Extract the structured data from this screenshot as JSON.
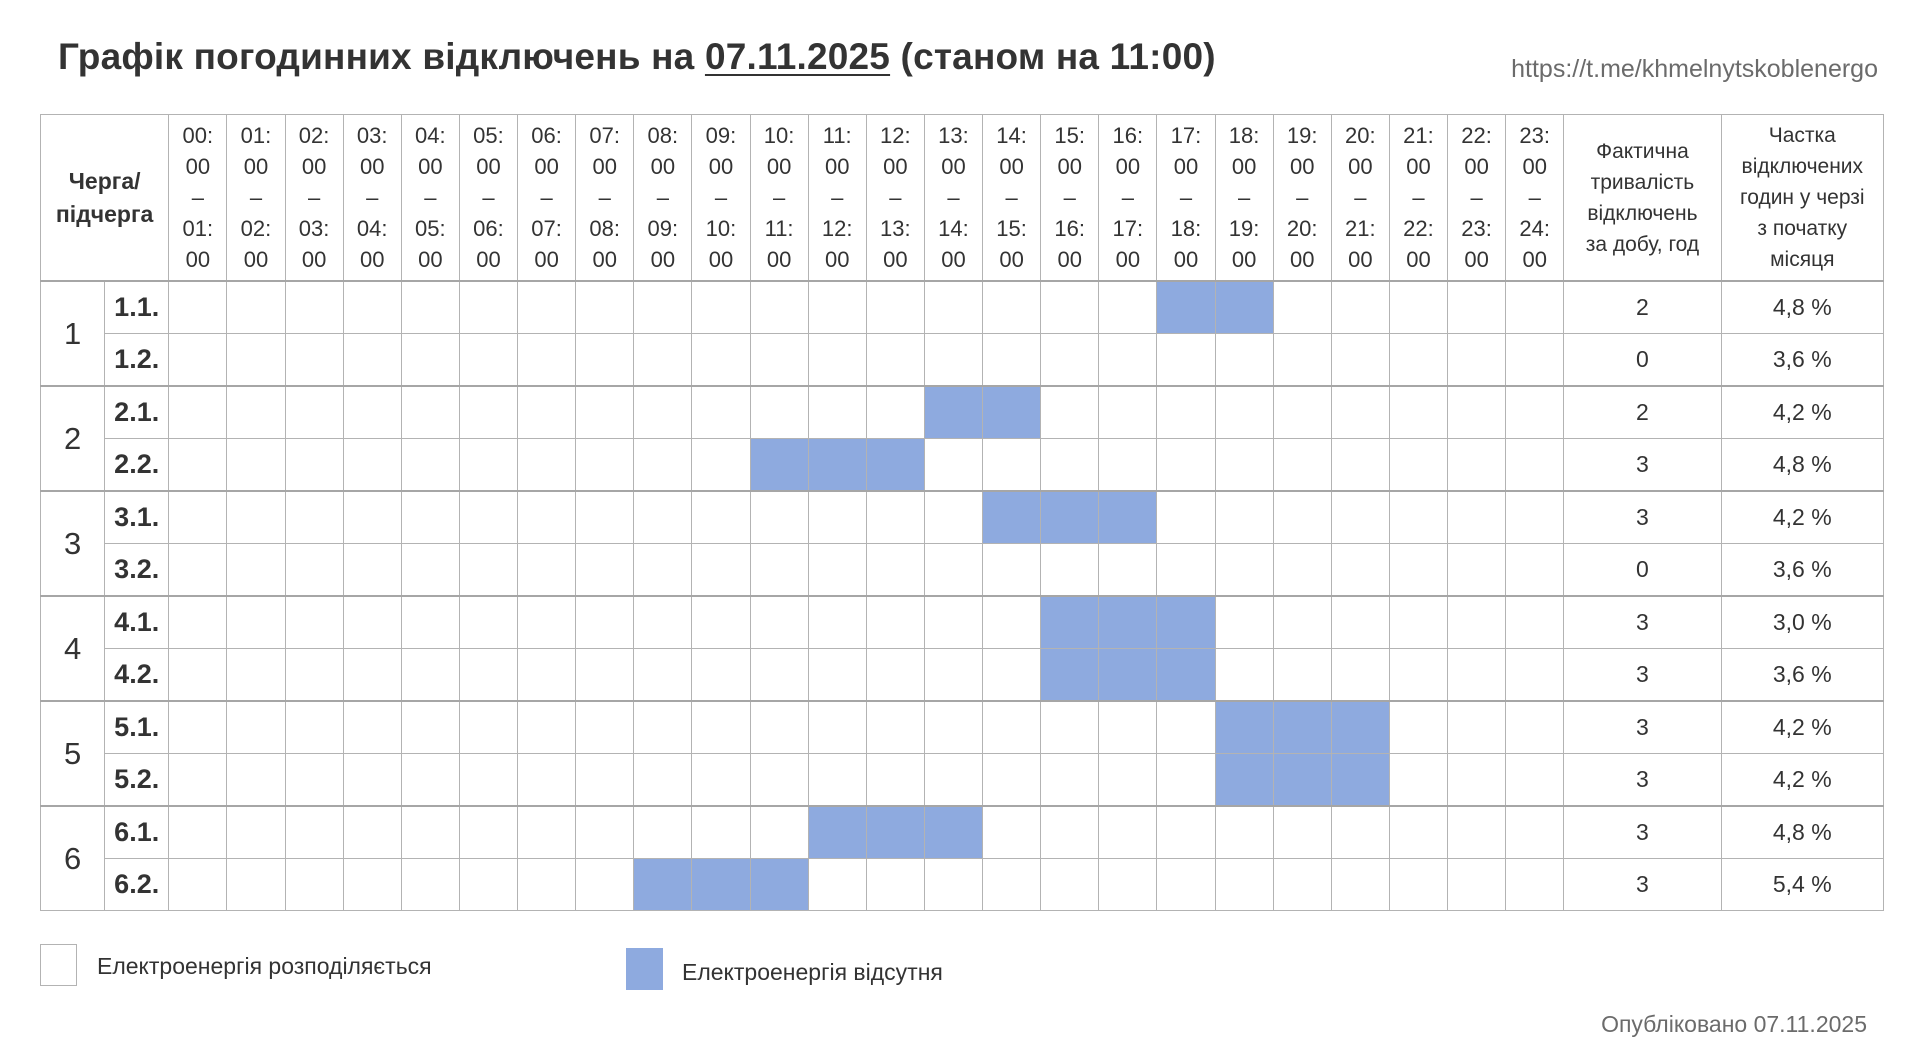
{
  "header": {
    "title_prefix": "Графік погодинних відключень на ",
    "title_date": "07.11.2025",
    "title_suffix": " (станом на 11:00)",
    "link": "https://t.me/khmelnytskoblenergo"
  },
  "table": {
    "queue_header": [
      "Черга/",
      "підчерга"
    ],
    "hours": [
      [
        "00:",
        "00",
        "–",
        "01:",
        "00"
      ],
      [
        "01:",
        "00",
        "–",
        "02:",
        "00"
      ],
      [
        "02:",
        "00",
        "–",
        "03:",
        "00"
      ],
      [
        "03:",
        "00",
        "–",
        "04:",
        "00"
      ],
      [
        "04:",
        "00",
        "–",
        "05:",
        "00"
      ],
      [
        "05:",
        "00",
        "–",
        "06:",
        "00"
      ],
      [
        "06:",
        "00",
        "–",
        "07:",
        "00"
      ],
      [
        "07:",
        "00",
        "–",
        "08:",
        "00"
      ],
      [
        "08:",
        "00",
        "–",
        "09:",
        "00"
      ],
      [
        "09:",
        "00",
        "–",
        "10:",
        "00"
      ],
      [
        "10:",
        "00",
        "–",
        "11:",
        "00"
      ],
      [
        "11:",
        "00",
        "–",
        "12:",
        "00"
      ],
      [
        "12:",
        "00",
        "–",
        "13:",
        "00"
      ],
      [
        "13:",
        "00",
        "–",
        "14:",
        "00"
      ],
      [
        "14:",
        "00",
        "–",
        "15:",
        "00"
      ],
      [
        "15:",
        "00",
        "–",
        "16:",
        "00"
      ],
      [
        "16:",
        "00",
        "–",
        "17:",
        "00"
      ],
      [
        "17:",
        "00",
        "–",
        "18:",
        "00"
      ],
      [
        "18:",
        "00",
        "–",
        "19:",
        "00"
      ],
      [
        "19:",
        "00",
        "–",
        "20:",
        "00"
      ],
      [
        "20:",
        "00",
        "–",
        "21:",
        "00"
      ],
      [
        "21:",
        "00",
        "–",
        "22:",
        "00"
      ],
      [
        "22:",
        "00",
        "–",
        "23:",
        "00"
      ],
      [
        "23:",
        "00",
        "–",
        "24:",
        "00"
      ]
    ],
    "duration_header": [
      "Фактична",
      "тривалість",
      "відключень",
      "за добу, год"
    ],
    "share_header": [
      "Частка",
      "відключених",
      "годин у черзі",
      "з початку",
      "місяця"
    ],
    "groups": [
      {
        "label": "1",
        "subs": [
          {
            "label": "1.1.",
            "off_hours": [
              17,
              18
            ],
            "duration": "2",
            "share": "4,8 %"
          },
          {
            "label": "1.2.",
            "off_hours": [],
            "duration": "0",
            "share": "3,6 %"
          }
        ]
      },
      {
        "label": "2",
        "subs": [
          {
            "label": "2.1.",
            "off_hours": [
              13,
              14
            ],
            "duration": "2",
            "share": "4,2 %"
          },
          {
            "label": "2.2.",
            "off_hours": [
              10,
              11,
              12
            ],
            "duration": "3",
            "share": "4,8 %"
          }
        ]
      },
      {
        "label": "3",
        "subs": [
          {
            "label": "3.1.",
            "off_hours": [
              14,
              15,
              16
            ],
            "duration": "3",
            "share": "4,2 %"
          },
          {
            "label": "3.2.",
            "off_hours": [],
            "duration": "0",
            "share": "3,6 %"
          }
        ]
      },
      {
        "label": "4",
        "subs": [
          {
            "label": "4.1.",
            "off_hours": [
              15,
              16,
              17
            ],
            "duration": "3",
            "share": "3,0 %"
          },
          {
            "label": "4.2.",
            "off_hours": [
              15,
              16,
              17
            ],
            "duration": "3",
            "share": "3,6 %"
          }
        ]
      },
      {
        "label": "5",
        "subs": [
          {
            "label": "5.1.",
            "off_hours": [
              18,
              19,
              20
            ],
            "duration": "3",
            "share": "4,2 %"
          },
          {
            "label": "5.2.",
            "off_hours": [
              18,
              19,
              20
            ],
            "duration": "3",
            "share": "4,2 %"
          }
        ]
      },
      {
        "label": "6",
        "subs": [
          {
            "label": "6.1.",
            "off_hours": [
              11,
              12,
              13
            ],
            "duration": "3",
            "share": "4,8 %"
          },
          {
            "label": "6.2.",
            "off_hours": [
              8,
              9,
              10
            ],
            "duration": "3",
            "share": "5,4 %"
          }
        ]
      }
    ]
  },
  "legend": {
    "on_label": "Електроенергія розподіляється",
    "off_label": "Електроенергія відсутня"
  },
  "footer": {
    "published": "Опубліковано 07.11.2025"
  },
  "colors": {
    "off": "#8eaadf",
    "on": "#ffffff"
  }
}
